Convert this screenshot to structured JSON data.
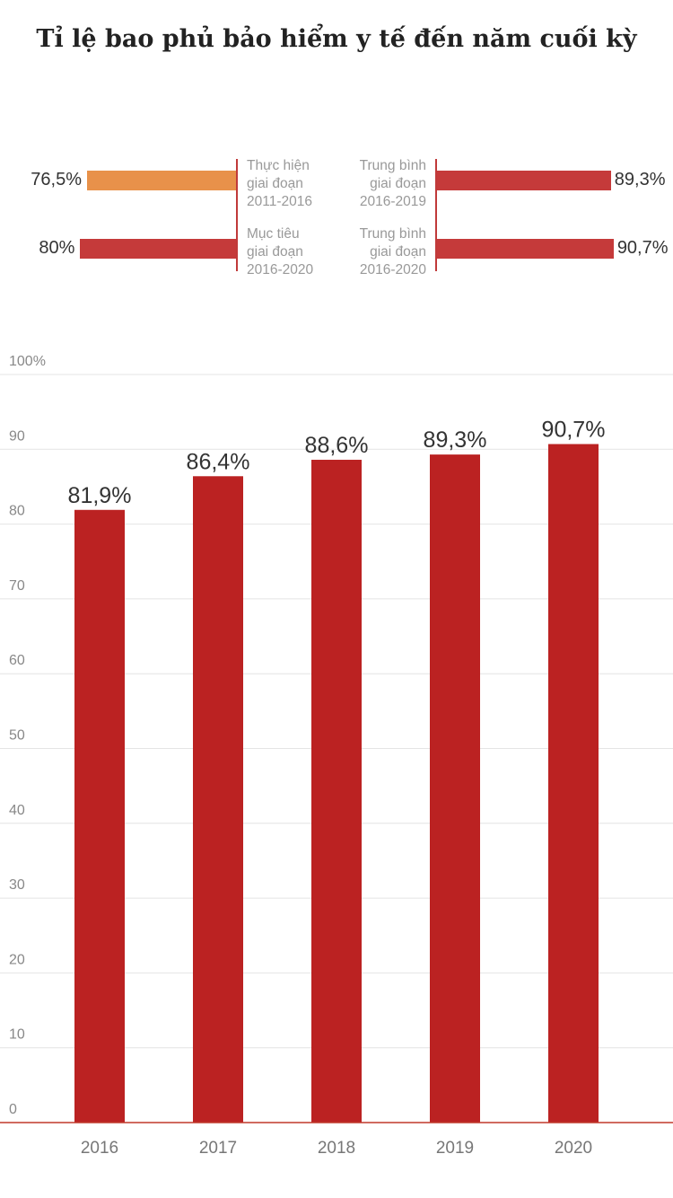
{
  "title": "Tỉ lệ bao phủ bảo hiểm y tế đến năm cuối kỳ",
  "summary": {
    "left": [
      {
        "value": 76.5,
        "value_label": "76,5%",
        "label": [
          "Thực hiện",
          "giai đoạn",
          "2011-2016"
        ],
        "color": "#e8914a"
      },
      {
        "value": 80,
        "value_label": "80%",
        "label": [
          "Mục tiêu",
          "giai đoạn",
          "2016-2020"
        ],
        "color": "#c53a3a"
      }
    ],
    "right": [
      {
        "value": 89.3,
        "value_label": "89,3%",
        "label": [
          "Trung bình",
          "giai đoạn",
          "2016-2019"
        ],
        "color": "#c53a3a"
      },
      {
        "value": 90.7,
        "value_label": "90,7%",
        "label": [
          "Trung bình",
          "giai đoạn",
          "2016-2020"
        ],
        "color": "#c53a3a"
      }
    ]
  },
  "chart_data": {
    "type": "bar",
    "title": "Tỉ lệ bao phủ bảo hiểm y tế đến năm cuối kỳ",
    "categories": [
      "2016",
      "2017",
      "2018",
      "2019",
      "2020"
    ],
    "values": [
      81.9,
      86.4,
      88.6,
      89.3,
      90.7
    ],
    "value_labels": [
      "81,9%",
      "86,4%",
      "88,6%",
      "89,3%",
      "90,7%"
    ],
    "ylim": [
      0,
      100
    ],
    "yticks": [
      0,
      10,
      20,
      30,
      40,
      50,
      60,
      70,
      80,
      90,
      100
    ],
    "ytick_labels": [
      "0",
      "10",
      "20",
      "30",
      "40",
      "50",
      "60",
      "70",
      "80",
      "90",
      "100%"
    ],
    "grid": true,
    "bar_color": "#bb2222",
    "xlabel": "",
    "ylabel": ""
  }
}
